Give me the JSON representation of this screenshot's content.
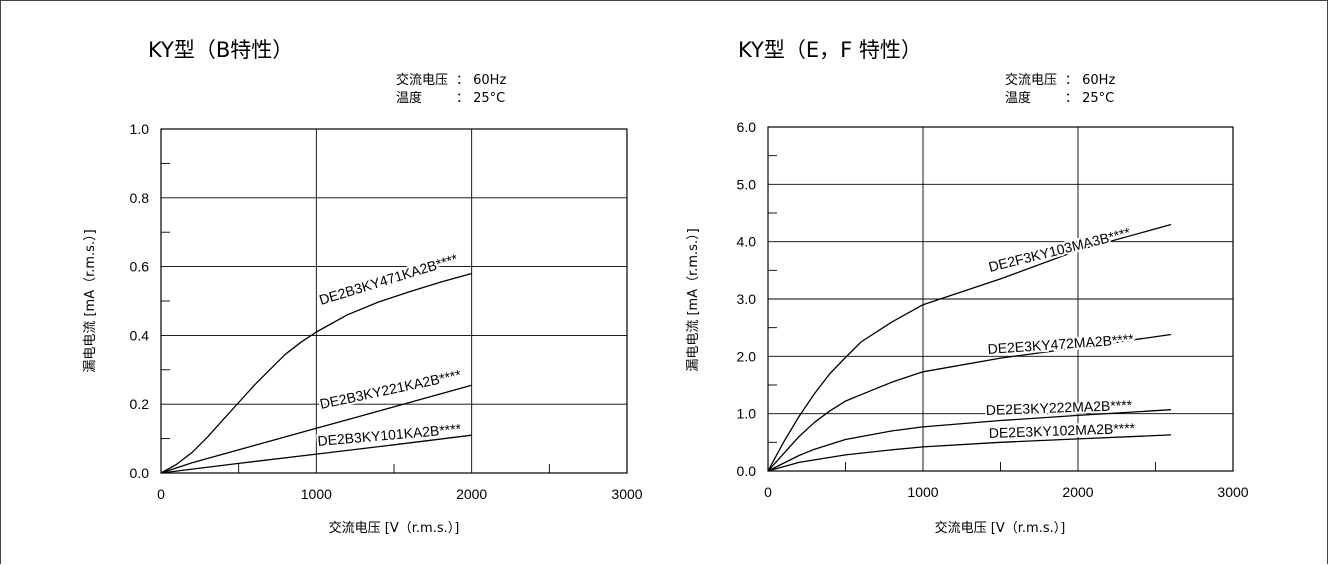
{
  "chart_data": [
    {
      "type": "line",
      "title": "KY型（B特性）",
      "conditions": [
        {
          "label": "交流电压",
          "value": "： 60Hz"
        },
        {
          "label": "温度",
          "value": "： 25°C"
        }
      ],
      "xlabel": "交流电压 [V（r.m.s.）]",
      "ylabel": "漏电电流 [mA（r.m.s.）]",
      "xlim": [
        0,
        3000
      ],
      "ylim": [
        0,
        1.0
      ],
      "xticks": [
        "0",
        "1000",
        "2000",
        "3000"
      ],
      "yticks": [
        "0.0",
        "0.2",
        "0.4",
        "0.6",
        "0.8",
        "1.0"
      ],
      "grid": true,
      "series": [
        {
          "name": "DE2B3KY471KA2B****",
          "x": [
            0,
            100,
            200,
            300,
            400,
            500,
            600,
            700,
            800,
            900,
            1000,
            1200,
            1400,
            1600,
            1800,
            2000
          ],
          "y": [
            0,
            0.025,
            0.06,
            0.105,
            0.155,
            0.205,
            0.255,
            0.3,
            0.345,
            0.38,
            0.41,
            0.46,
            0.497,
            0.527,
            0.555,
            0.58
          ]
        },
        {
          "name": "DE2B3KY221KA2B****",
          "x": [
            0,
            200,
            400,
            600,
            800,
            1000,
            1200,
            1400,
            1600,
            1800,
            2000
          ],
          "y": [
            0,
            0.03,
            0.055,
            0.08,
            0.105,
            0.13,
            0.155,
            0.18,
            0.205,
            0.23,
            0.255
          ]
        },
        {
          "name": "DE2B3KY101KA2B****",
          "x": [
            0,
            500,
            1000,
            1500,
            2000
          ],
          "y": [
            0,
            0.028,
            0.055,
            0.082,
            0.11
          ]
        }
      ]
    },
    {
      "type": "line",
      "title": "KY型（E，F 特性）",
      "conditions": [
        {
          "label": "交流电压",
          "value": "： 60Hz"
        },
        {
          "label": "温度",
          "value": "： 25°C"
        }
      ],
      "xlabel": "交流电压 [V（r.m.s.）]",
      "ylabel": "漏电电流 [mA（r.m.s.）]",
      "xlim": [
        0,
        3000
      ],
      "ylim": [
        0,
        6.0
      ],
      "xticks": [
        "0",
        "1000",
        "2000",
        "3000"
      ],
      "yticks": [
        "0.0",
        "1.0",
        "2.0",
        "3.0",
        "4.0",
        "5.0",
        "6.0"
      ],
      "grid": true,
      "series": [
        {
          "name": "DE2F3KY103MA3B****",
          "x": [
            0,
            100,
            200,
            300,
            400,
            500,
            600,
            800,
            1000,
            1500,
            2000,
            2600
          ],
          "y": [
            0,
            0.5,
            0.95,
            1.35,
            1.7,
            1.98,
            2.25,
            2.6,
            2.9,
            3.35,
            3.85,
            4.3
          ]
        },
        {
          "name": "DE2E3KY472MA2B****",
          "x": [
            0,
            100,
            200,
            300,
            400,
            500,
            600,
            800,
            1000,
            1500,
            2000,
            2600
          ],
          "y": [
            0,
            0.3,
            0.6,
            0.85,
            1.05,
            1.22,
            1.33,
            1.55,
            1.73,
            1.97,
            2.15,
            2.38
          ]
        },
        {
          "name": "DE2E3KY222MA2B****",
          "x": [
            0,
            200,
            300,
            500,
            800,
            1000,
            1500,
            2000,
            2600
          ],
          "y": [
            0,
            0.27,
            0.38,
            0.55,
            0.7,
            0.77,
            0.88,
            0.97,
            1.07
          ]
        },
        {
          "name": "DE2E3KY102MA2B****",
          "x": [
            0,
            200,
            500,
            800,
            1000,
            1500,
            2000,
            2600
          ],
          "y": [
            0,
            0.15,
            0.28,
            0.37,
            0.42,
            0.5,
            0.56,
            0.63
          ]
        }
      ]
    }
  ]
}
